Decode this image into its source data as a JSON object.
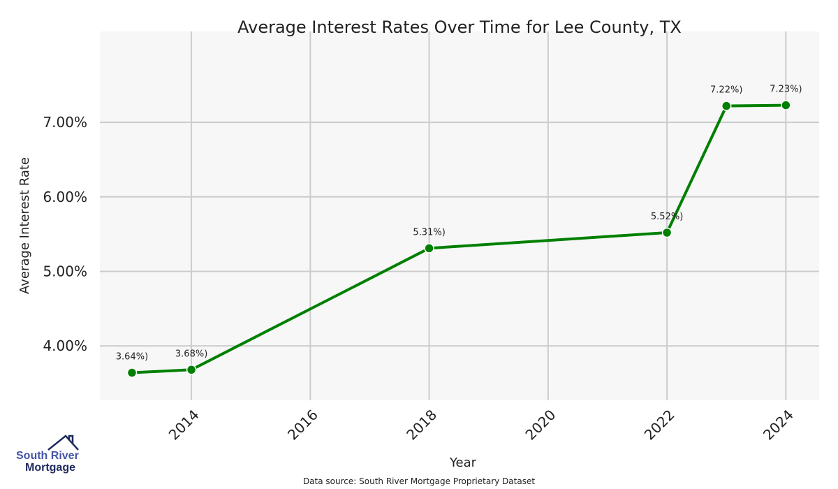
{
  "chart_data": {
    "type": "line",
    "title": "Average Interest Rates Over Time for Lee County, TX",
    "xlabel": "Year",
    "ylabel": "Average Interest Rate",
    "x": [
      2013,
      2014,
      2018,
      2022,
      2023,
      2024
    ],
    "values": [
      3.64,
      3.68,
      5.31,
      5.52,
      7.22,
      7.23
    ],
    "data_labels": [
      "3.64%)",
      "3.68%)",
      "5.31%)",
      "5.52%)",
      "7.22%)",
      "7.23%)"
    ],
    "xticks": [
      2014,
      2016,
      2018,
      2020,
      2022,
      2024
    ],
    "yticks": [
      4,
      5,
      6,
      7
    ],
    "ytick_labels": [
      "4.00%",
      "5.00%",
      "6.00%",
      "7.00%"
    ],
    "xlim": [
      2012.46,
      2024.56
    ],
    "ylim": [
      3.27,
      8.22
    ],
    "grid": true,
    "line_color": "#008000",
    "background": "#f7f7f7"
  },
  "footer": {
    "source": "Data source: South River Mortgage Proprietary Dataset"
  },
  "logo": {
    "line1": "South River",
    "line2": "Mortgage"
  }
}
